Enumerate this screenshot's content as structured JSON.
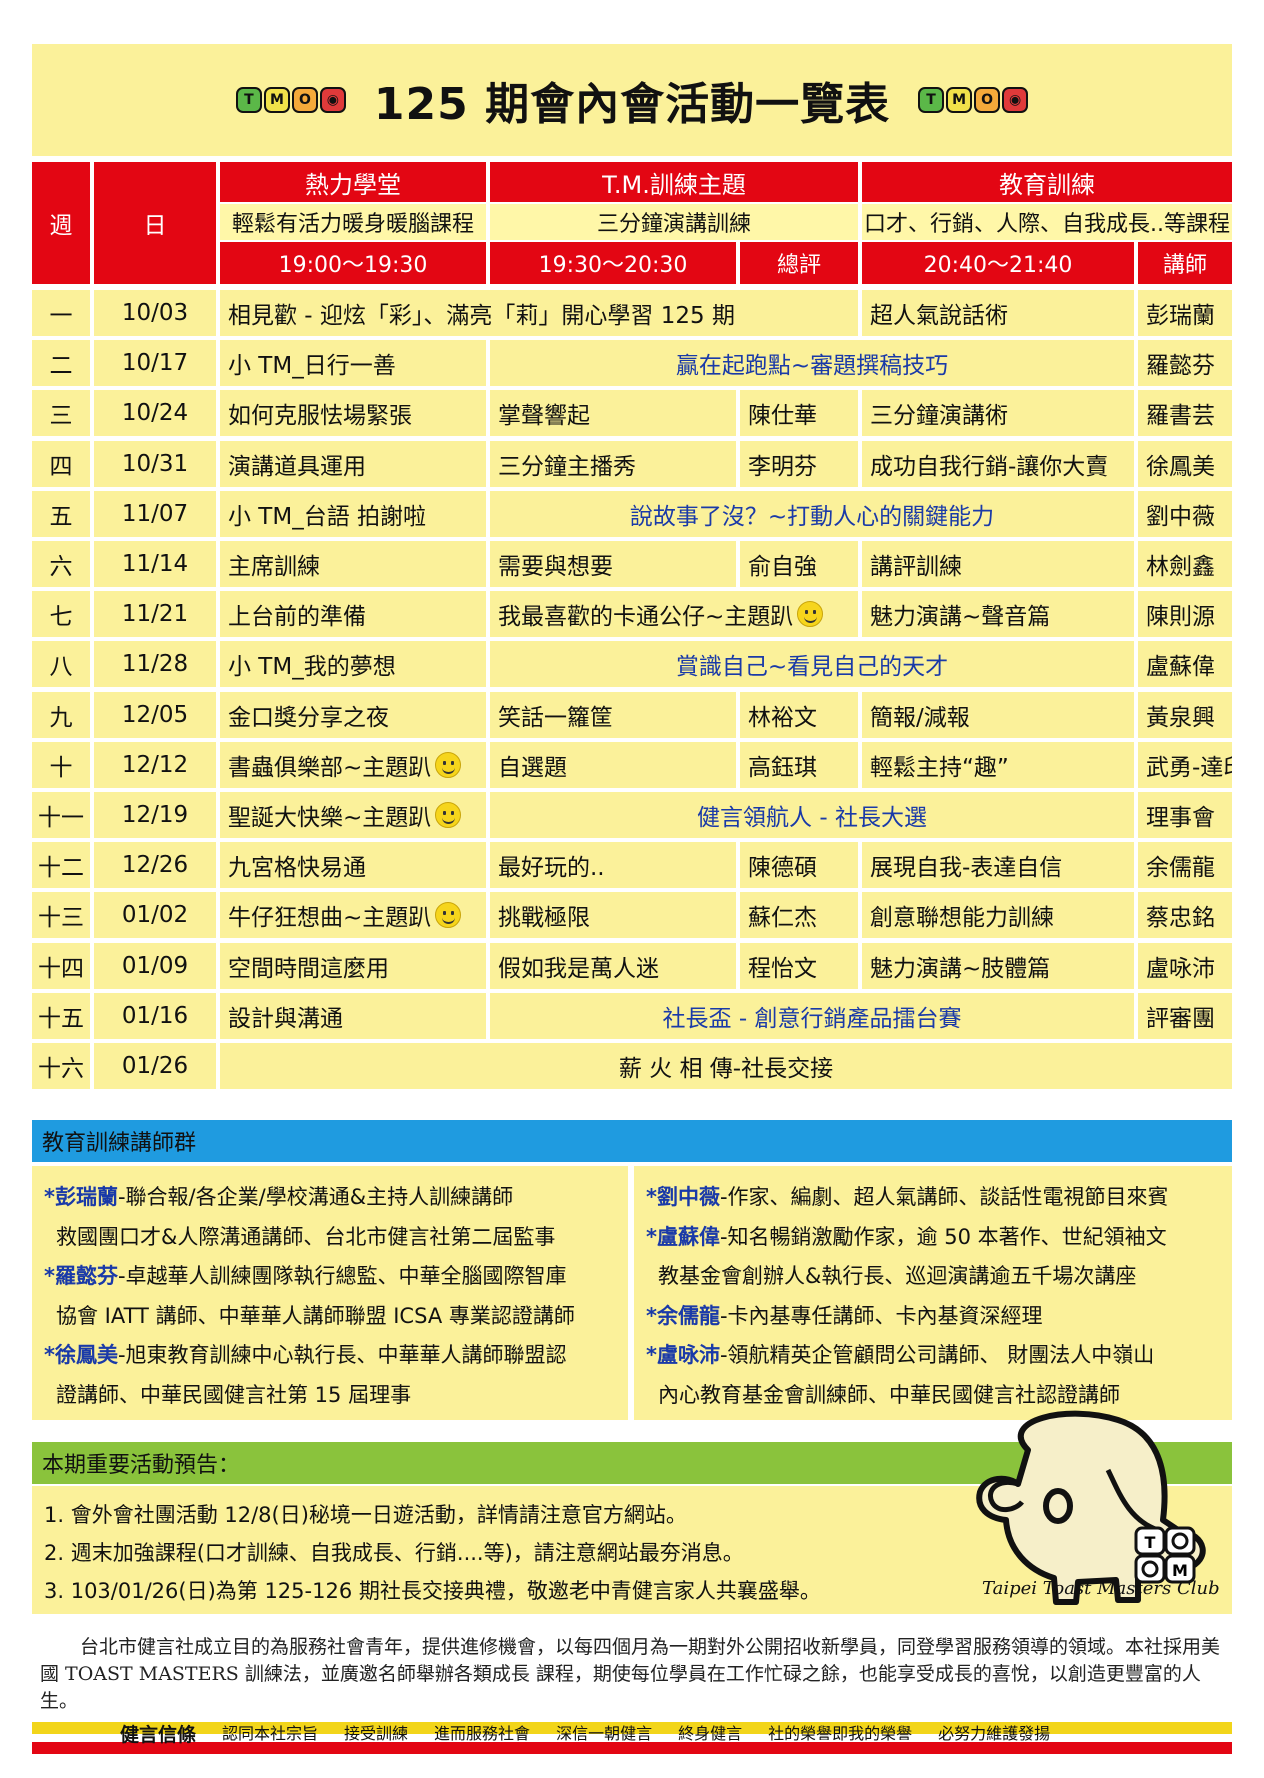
{
  "title": "125 期會內會活動一覽表",
  "logo_letters": [
    "T",
    "M",
    "O",
    "◉"
  ],
  "header": {
    "week": "週",
    "day": "日",
    "col1_title": "熱力學堂",
    "col1_sub": "輕鬆有活力暖身暖腦課程",
    "col1_time": "19:00～19:30",
    "col2_title": "T.M.訓練主題",
    "col2_sub": "三分鐘演講訓練",
    "col2_time": "19:30～20:30",
    "col2_judge": "總評",
    "col3_title": "教育訓練",
    "col3_sub": "口才、行銷、人際、自我成長..等課程",
    "col3_time": "20:40～21:40",
    "col3_teacher": "講師"
  },
  "rows": [
    {
      "wk": "一",
      "date": "10/03",
      "a": "相見歡 - 迎炫「彩」、滿亮「莉」開心學習 125 期",
      "b": "",
      "j": "",
      "c": "超人氣說話術",
      "t": "彭瑞蘭",
      "type": "ab"
    },
    {
      "wk": "二",
      "date": "10/17",
      "a": "小 TM_日行一善",
      "b": "贏在起跑點~審題撰稿技巧",
      "j": "",
      "c": "",
      "t": "羅懿芬",
      "type": "bc"
    },
    {
      "wk": "三",
      "date": "10/24",
      "a": "如何克服怯場緊張",
      "b": "掌聲響起",
      "j": "陳仕華",
      "c": "三分鐘演講術",
      "t": "羅書芸",
      "type": "n"
    },
    {
      "wk": "四",
      "date": "10/31",
      "a": "演講道具運用",
      "b": "三分鐘主播秀",
      "j": "李明芬",
      "c": "成功自我行銷-讓你大賣",
      "t": "徐鳳美",
      "type": "n"
    },
    {
      "wk": "五",
      "date": "11/07",
      "a": "小 TM_台語 拍謝啦",
      "b": "說故事了沒？~打動人心的關鍵能力",
      "j": "",
      "c": "",
      "t": "劉中薇",
      "type": "bc"
    },
    {
      "wk": "六",
      "date": "11/14",
      "a": "主席訓練",
      "b": "需要與想要",
      "j": "俞自強",
      "c": "講評訓練",
      "t": "林劍鑫",
      "type": "n"
    },
    {
      "wk": "七",
      "date": "11/21",
      "a": "上台前的準備",
      "b": "我最喜歡的卡通公仔~主題趴",
      "j": "",
      "c": "魅力演講~聲音篇",
      "t": "陳則源",
      "type": "bj",
      "smile": "b"
    },
    {
      "wk": "八",
      "date": "11/28",
      "a": "小 TM_我的夢想",
      "b": "賞識自己~看見自己的天才",
      "j": "",
      "c": "",
      "t": "盧蘇偉",
      "type": "bc"
    },
    {
      "wk": "九",
      "date": "12/05",
      "a": "金口獎分享之夜",
      "b": "笑話一籮筐",
      "j": "林裕文",
      "c": "簡報/減報",
      "t": "黃泉興",
      "type": "n"
    },
    {
      "wk": "十",
      "date": "12/12",
      "a": "書蟲俱樂部~主題趴",
      "b": "自選題",
      "j": "高鈺琪",
      "c": "輕鬆主持“趣”",
      "t": "武勇-達印",
      "type": "n",
      "smile": "a"
    },
    {
      "wk": "十一",
      "date": "12/19",
      "a": "聖誕大快樂~主題趴",
      "b": "健言領航人 - 社長大選",
      "j": "",
      "c": "",
      "t": "理事會",
      "type": "bc",
      "smile": "a"
    },
    {
      "wk": "十二",
      "date": "12/26",
      "a": "九宮格快易通",
      "b": "最好玩的..",
      "j": "陳德碩",
      "c": "展現自我-表達自信",
      "t": "余儒龍",
      "type": "n"
    },
    {
      "wk": "十三",
      "date": "01/02",
      "a": "牛仔狂想曲~主題趴",
      "b": "挑戰極限",
      "j": "蘇仁杰",
      "c": "創意聯想能力訓練",
      "t": "蔡忠銘",
      "type": "n",
      "smile": "a"
    },
    {
      "wk": "十四",
      "date": "01/09",
      "a": "空間時間這麼用",
      "b": "假如我是萬人迷",
      "j": "程怡文",
      "c": "魅力演講~肢體篇",
      "t": "盧咏沛",
      "type": "n"
    },
    {
      "wk": "十五",
      "date": "01/16",
      "a": "設計與溝通",
      "b": "社長盃 - 創意行銷產品擂台賽",
      "j": "",
      "c": "",
      "t": "評審團",
      "type": "bc"
    },
    {
      "wk": "十六",
      "date": "01/26",
      "a": "薪 火 相 傳-社長交接",
      "b": "",
      "j": "",
      "c": "",
      "t": "",
      "type": "all"
    }
  ],
  "teachers_title": "教育訓練講師群",
  "teachers_left": [
    {
      "name": "*彭瑞蘭",
      "line1": "-聯合報/各企業/學校溝通&主持人訓練講師",
      "line2": "救國團口才&人際溝通講師、台北市健言社第二屆監事"
    },
    {
      "name": "*羅懿芬",
      "line1": "-卓越華人訓練團隊執行總監、中華全腦國際智庫",
      "line2": "協會 IATT 講師、中華華人講師聯盟 ICSA 專業認證講師"
    },
    {
      "name": "*徐鳳美",
      "line1": "-旭東教育訓練中心執行長、中華華人講師聯盟認",
      "line2": "證講師、中華民國健言社第 15 屆理事"
    }
  ],
  "teachers_right": [
    {
      "name": "*劉中薇",
      "line1": "-作家、編劇、超人氣講師、談話性電視節目來賓",
      "line2": ""
    },
    {
      "name": "*盧蘇偉",
      "line1": "-知名暢銷激勵作家，逾 50 本著作、世紀領袖文",
      "line2": "教基金會創辦人&執行長、巡迴演講逾五千場次講座"
    },
    {
      "name": "*余儒龍",
      "line1": "-卡內基專任講師、卡內基資深經理",
      "line2": ""
    },
    {
      "name": "*盧咏沛",
      "line1": "-領航精英企管顧問公司講師、 財團法人中嶺山",
      "line2": "內心教育基金會訓練師、中華民國健言社認證講師"
    }
  ],
  "notices_title": "本期重要活動預告：",
  "notices": [
    "1.  會外會社團活動 12/8(日)秘境一日遊活動，詳情請注意官方網站。",
    "2.  週末加強課程(口才訓練、自我成長、行銷....等)，請注意網站最夯消息。",
    "3. 103/01/26(日)為第 125-126 期社長交接典禮，敬邀老中青健言家人共襄盛舉。"
  ],
  "club_name": "Taipei Toast Masters Club",
  "about": "台北市健言社成立目的為服務社會青年，提供進修機會，以每四個月為一期對外公開招收新學員，同登學習服務領導的領域。本社採用美國 TOAST MASTERS 訓練法，並廣邀名師舉辦各類成長 課程，期使每位學員在工作忙碌之餘，也能享受成長的喜悅，以創造更豐富的人生。",
  "creed": [
    "健言信條",
    "認同本社宗旨",
    "接受訓練",
    "進而服務社會",
    "深信一朝健言",
    "終身健言",
    "社的榮譽即我的榮譽",
    "必努力維護發揚"
  ]
}
